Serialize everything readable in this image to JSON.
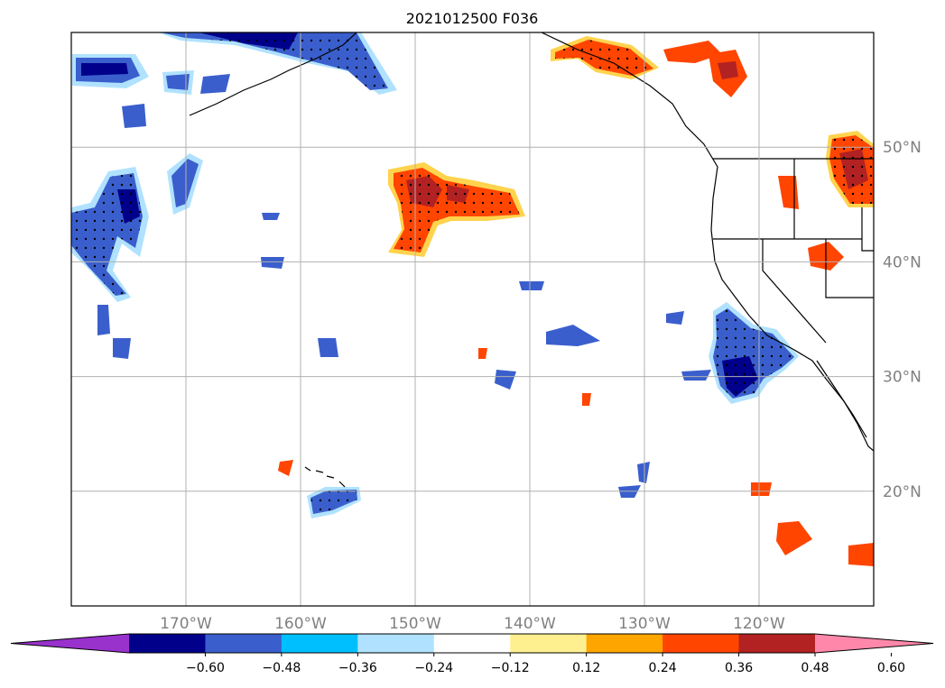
{
  "title": "2021012500 F036",
  "map": {
    "lon_range": [
      -180,
      -110
    ],
    "lat_range": [
      10,
      60
    ],
    "lat_gridlines": [
      20,
      30,
      40,
      50
    ],
    "lon_gridlines": [
      -170,
      -160,
      -150,
      -140,
      -130,
      -120
    ],
    "lat_labels": [
      "20°N",
      "30°N",
      "40°N",
      "50°N"
    ],
    "lon_labels": [
      "170°W",
      "160°W",
      "150°W",
      "140°W",
      "130°W",
      "120°W"
    ],
    "gridline_color": "#b0b0b0"
  },
  "colorbar": {
    "ticks": [
      "−0.60",
      "−0.48",
      "−0.36",
      "−0.24",
      "−0.12",
      "0.12",
      "0.24",
      "0.36",
      "0.48",
      "0.60"
    ],
    "colors": [
      "#9932cc",
      "#00008b",
      "#3a5fcd",
      "#00bfff",
      "#b0e2ff",
      "#ffffff",
      "#fff08f",
      "#ffa500",
      "#ff4500",
      "#b22222",
      "#ff88aa"
    ]
  }
}
